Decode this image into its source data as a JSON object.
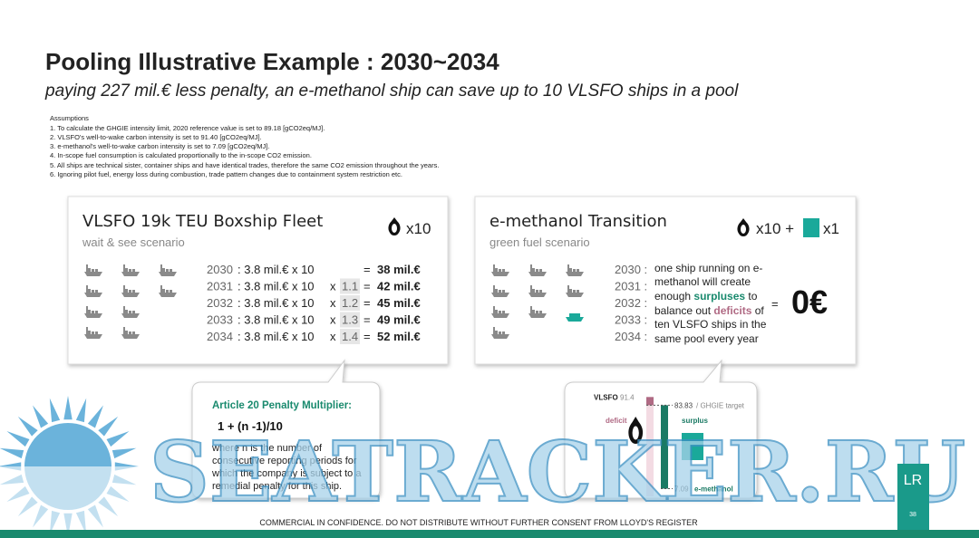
{
  "header": {
    "title": "Pooling Illustrative Example : 2030~2034",
    "subtitle": "paying 227 mil.€ less penalty, an e-methanol ship can save up to 10 VLSFO ships in a pool"
  },
  "assumptions": {
    "heading": "Assumptions",
    "items": [
      "1. To calculate the GHGIE intensity limit, 2020 reference value is set to 89.18 [gCO2eq/MJ].",
      "2. VLSFO's well-to-wake carbon intensity is set to 91.40 [gCO2eq/MJ].",
      "3. e-methanol's well-to-wake carbon intensity is set to 7.09 [gCO2eq/MJ].",
      "4. In-scope fuel consumption is calculated proportionally to the in-scope CO2 emission.",
      "5. All ships are technical sister, container ships  and have identical trades, therefore the same CO2 emission throughout the years.",
      "6. Ignoring pilot fuel, energy loss during combustion, trade pattern changes due to containment system restriction etc."
    ]
  },
  "left_card": {
    "title": "VLSFO 19k TEU Boxship Fleet",
    "subtitle": "wait & see scenario",
    "count": "x10",
    "equals": "=",
    "rows": [
      {
        "year": "2030",
        "formula": ": 3.8 mil.€  x  10",
        "result": "38 mil.€"
      },
      {
        "year": "2031",
        "formula": ": 3.8 mil.€  x  10",
        "times": "x",
        "multiplier": "1.1",
        "result": "42 mil.€"
      },
      {
        "year": "2032",
        "formula": ": 3.8 mil.€  x  10",
        "times": "x",
        "multiplier": "1.2",
        "result": "45 mil.€"
      },
      {
        "year": "2033",
        "formula": ": 3.8 mil.€  x  10",
        "times": "x",
        "multiplier": "1.3",
        "result": "49 mil.€"
      },
      {
        "year": "2034",
        "formula": ": 3.8 mil.€  x  10",
        "times": "x",
        "multiplier": "1.4",
        "result": "52 mil.€"
      }
    ]
  },
  "right_card": {
    "title": "e-methanol Transition",
    "subtitle": "green fuel scenario",
    "count_a": "x10 +",
    "count_b": "x1",
    "years": [
      "2030 :",
      "2031 :",
      "2032 :",
      "2033 :",
      "2034 :"
    ],
    "text_lines": [
      "one ship running on e-",
      "methanol will create"
    ],
    "line3_a": "enough ",
    "line3_b": "surpluses",
    "line3_c": " to",
    "line4_a": "balance out ",
    "line4_b": "deficits",
    "line4_c": " of",
    "text_tail": [
      "ten VLSFO ships in the",
      "same pool every year"
    ],
    "equals": "=",
    "result": "0€"
  },
  "callout_left": {
    "heading": "Article 20 Penalty Multiplier:",
    "formula": "1 + (n -1)/10",
    "body": [
      "where n is the number of",
      "consecutive reporting periods for",
      "which the company is subject to a",
      "remedial penalty for this ship."
    ]
  },
  "callout_right": {
    "vlsfo_label": "VLSFO",
    "vlsfo": 91.4,
    "target": 83.83,
    "target_label": "/ GHGIE target",
    "emethanol": 7.09,
    "emethanol_label": "e-methanol",
    "deficit": "deficit",
    "surplus": "surplus"
  },
  "watermark": "SEATRACKER.RU",
  "footer": {
    "notice": "COMMERCIAL IN CONFIDENCE. DO NOT DISTRIBUTE WITHOUT FURTHER CONSENT FROM LLOYD'S REGISTER",
    "page": "38",
    "logo": "LR"
  }
}
